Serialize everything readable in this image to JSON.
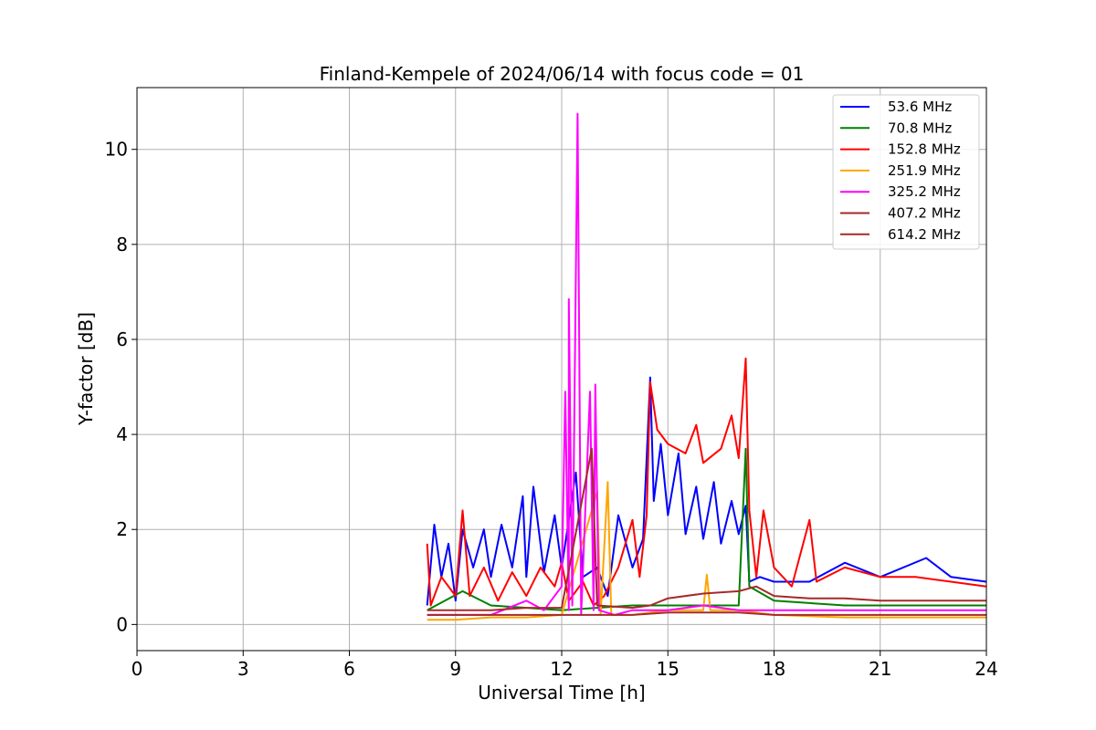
{
  "chart_data": {
    "type": "line",
    "title": "Finland-Kempele of 2024/06/14 with focus code = 01",
    "xlabel": "Universal Time [h]",
    "ylabel": "Y-factor [dB]",
    "xlim": [
      0,
      24
    ],
    "ylim": [
      -0.55,
      11.3
    ],
    "xticks": [
      0,
      3,
      6,
      9,
      12,
      15,
      18,
      21,
      24
    ],
    "yticks": [
      0,
      2,
      4,
      6,
      8,
      10
    ],
    "grid": true,
    "legend_position": "top-right",
    "series": [
      {
        "name": "53.6 MHz",
        "color": "#0000ff",
        "points": [
          [
            8.2,
            0.4
          ],
          [
            8.4,
            2.1
          ],
          [
            8.6,
            1.0
          ],
          [
            8.8,
            1.7
          ],
          [
            9.0,
            0.5
          ],
          [
            9.2,
            2.0
          ],
          [
            9.5,
            1.2
          ],
          [
            9.8,
            2.0
          ],
          [
            10.0,
            1.0
          ],
          [
            10.3,
            2.1
          ],
          [
            10.6,
            1.2
          ],
          [
            10.9,
            2.7
          ],
          [
            11.0,
            1.0
          ],
          [
            11.2,
            2.9
          ],
          [
            11.5,
            1.1
          ],
          [
            11.8,
            2.3
          ],
          [
            12.0,
            1.2
          ],
          [
            12.4,
            3.2
          ],
          [
            12.6,
            1.0
          ],
          [
            13.0,
            1.2
          ],
          [
            13.3,
            0.6
          ],
          [
            13.6,
            2.3
          ],
          [
            14.0,
            1.2
          ],
          [
            14.3,
            1.8
          ],
          [
            14.5,
            5.2
          ],
          [
            14.6,
            2.6
          ],
          [
            14.8,
            3.8
          ],
          [
            15.0,
            2.3
          ],
          [
            15.3,
            3.6
          ],
          [
            15.5,
            1.9
          ],
          [
            15.8,
            2.9
          ],
          [
            16.0,
            1.8
          ],
          [
            16.3,
            3.0
          ],
          [
            16.5,
            1.7
          ],
          [
            16.8,
            2.6
          ],
          [
            17.0,
            1.9
          ],
          [
            17.2,
            2.5
          ],
          [
            17.3,
            0.9
          ],
          [
            17.6,
            1.0
          ],
          [
            18.0,
            0.9
          ],
          [
            19.0,
            0.9
          ],
          [
            20.0,
            1.3
          ],
          [
            21.0,
            1.0
          ],
          [
            22.3,
            1.4
          ],
          [
            23.0,
            1.0
          ],
          [
            24.0,
            0.9
          ]
        ]
      },
      {
        "name": "70.8 MHz",
        "color": "#008000",
        "points": [
          [
            8.2,
            0.3
          ],
          [
            9.2,
            0.7
          ],
          [
            10.0,
            0.4
          ],
          [
            12.0,
            0.3
          ],
          [
            14.0,
            0.4
          ],
          [
            15.0,
            0.4
          ],
          [
            16.0,
            0.4
          ],
          [
            17.0,
            0.4
          ],
          [
            17.2,
            3.7
          ],
          [
            17.3,
            0.8
          ],
          [
            18.0,
            0.5
          ],
          [
            20.0,
            0.4
          ],
          [
            22.0,
            0.4
          ],
          [
            24.0,
            0.4
          ]
        ]
      },
      {
        "name": "152.8 MHz",
        "color": "#ff0000",
        "points": [
          [
            8.2,
            1.7
          ],
          [
            8.3,
            0.4
          ],
          [
            8.6,
            1.0
          ],
          [
            9.0,
            0.6
          ],
          [
            9.2,
            2.4
          ],
          [
            9.4,
            0.6
          ],
          [
            9.8,
            1.2
          ],
          [
            10.2,
            0.5
          ],
          [
            10.6,
            1.1
          ],
          [
            11.0,
            0.6
          ],
          [
            11.4,
            1.2
          ],
          [
            11.8,
            0.8
          ],
          [
            12.0,
            1.3
          ],
          [
            12.2,
            0.5
          ],
          [
            12.6,
            0.9
          ],
          [
            12.9,
            0.4
          ],
          [
            13.2,
            0.6
          ],
          [
            13.6,
            1.2
          ],
          [
            14.0,
            2.2
          ],
          [
            14.2,
            1.0
          ],
          [
            14.4,
            2.3
          ],
          [
            14.5,
            5.1
          ],
          [
            14.7,
            4.1
          ],
          [
            15.0,
            3.8
          ],
          [
            15.5,
            3.6
          ],
          [
            15.8,
            4.2
          ],
          [
            16.0,
            3.4
          ],
          [
            16.5,
            3.7
          ],
          [
            16.8,
            4.4
          ],
          [
            17.0,
            3.5
          ],
          [
            17.2,
            5.6
          ],
          [
            17.3,
            2.4
          ],
          [
            17.5,
            1.0
          ],
          [
            17.7,
            2.4
          ],
          [
            18.0,
            1.2
          ],
          [
            18.5,
            0.8
          ],
          [
            19.0,
            2.2
          ],
          [
            19.2,
            0.9
          ],
          [
            20.0,
            1.2
          ],
          [
            21.0,
            1.0
          ],
          [
            22.0,
            1.0
          ],
          [
            23.0,
            0.9
          ],
          [
            24.0,
            0.8
          ]
        ]
      },
      {
        "name": "251.9 MHz",
        "color": "#ffa500",
        "points": [
          [
            8.2,
            0.1
          ],
          [
            9.0,
            0.1
          ],
          [
            10.0,
            0.15
          ],
          [
            11.0,
            0.15
          ],
          [
            12.0,
            0.2
          ],
          [
            13.0,
            2.8
          ],
          [
            13.1,
            0.2
          ],
          [
            13.3,
            3.0
          ],
          [
            13.4,
            0.2
          ],
          [
            14.0,
            0.2
          ],
          [
            15.0,
            0.3
          ],
          [
            16.0,
            0.3
          ],
          [
            16.1,
            1.05
          ],
          [
            16.2,
            0.3
          ],
          [
            17.0,
            0.3
          ],
          [
            18.0,
            0.2
          ],
          [
            20.0,
            0.15
          ],
          [
            22.0,
            0.15
          ],
          [
            24.0,
            0.15
          ]
        ]
      },
      {
        "name": "325.2 MHz",
        "color": "#ff00ff",
        "points": [
          [
            8.2,
            0.2
          ],
          [
            10.0,
            0.2
          ],
          [
            11.0,
            0.5
          ],
          [
            11.5,
            0.3
          ],
          [
            12.0,
            0.8
          ],
          [
            12.1,
            4.9
          ],
          [
            12.2,
            0.3
          ],
          [
            12.2,
            6.85
          ],
          [
            12.3,
            0.4
          ],
          [
            12.45,
            10.75
          ],
          [
            12.55,
            0.2
          ],
          [
            12.8,
            4.9
          ],
          [
            12.9,
            0.3
          ],
          [
            12.95,
            5.05
          ],
          [
            13.05,
            0.3
          ],
          [
            13.5,
            0.2
          ],
          [
            14.0,
            0.3
          ],
          [
            15.0,
            0.3
          ],
          [
            16.0,
            0.4
          ],
          [
            17.0,
            0.3
          ],
          [
            18.0,
            0.3
          ],
          [
            20.0,
            0.3
          ],
          [
            22.0,
            0.3
          ],
          [
            24.0,
            0.3
          ]
        ]
      },
      {
        "name": "407.2 MHz",
        "color": "#a52a2a",
        "points": [
          [
            8.2,
            0.3
          ],
          [
            9.0,
            0.3
          ],
          [
            10.0,
            0.3
          ],
          [
            11.0,
            0.35
          ],
          [
            12.0,
            0.35
          ],
          [
            12.85,
            3.7
          ],
          [
            13.0,
            0.4
          ],
          [
            14.0,
            0.35
          ],
          [
            14.5,
            0.4
          ],
          [
            15.0,
            0.55
          ],
          [
            16.0,
            0.65
          ],
          [
            17.0,
            0.7
          ],
          [
            17.5,
            0.8
          ],
          [
            18.0,
            0.6
          ],
          [
            19.0,
            0.55
          ],
          [
            20.0,
            0.55
          ],
          [
            21.0,
            0.5
          ],
          [
            22.0,
            0.5
          ],
          [
            23.0,
            0.5
          ],
          [
            24.0,
            0.5
          ]
        ]
      },
      {
        "name": "614.2 MHz",
        "color": "#a52a2a",
        "points": [
          [
            8.2,
            0.2
          ],
          [
            9.0,
            0.2
          ],
          [
            10.0,
            0.2
          ],
          [
            11.0,
            0.2
          ],
          [
            12.0,
            0.2
          ],
          [
            13.0,
            0.2
          ],
          [
            14.0,
            0.2
          ],
          [
            15.0,
            0.25
          ],
          [
            16.0,
            0.25
          ],
          [
            17.0,
            0.25
          ],
          [
            18.0,
            0.2
          ],
          [
            19.0,
            0.2
          ],
          [
            20.0,
            0.2
          ],
          [
            21.0,
            0.2
          ],
          [
            22.0,
            0.2
          ],
          [
            23.0,
            0.2
          ],
          [
            24.0,
            0.2
          ]
        ]
      }
    ]
  }
}
